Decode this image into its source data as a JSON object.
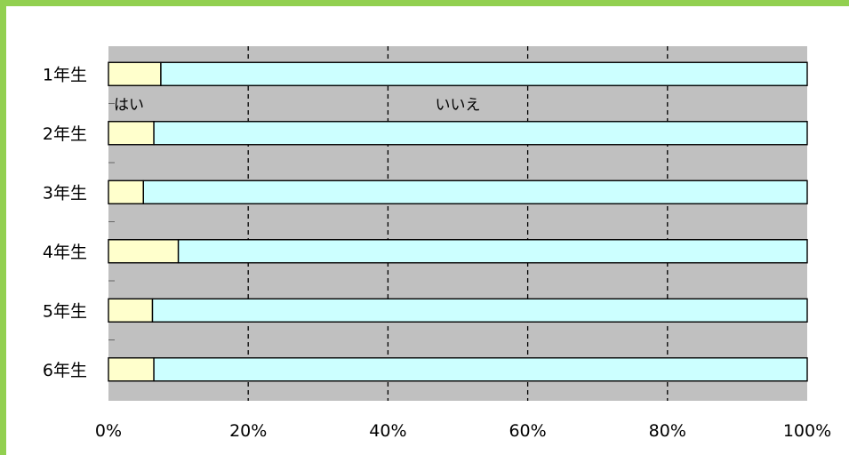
{
  "colors": {
    "border": "#92d050",
    "plot_bg": "#c0c0c0",
    "hai": "#ffffcc",
    "iie": "#ccffff",
    "bar_stroke": "#000000"
  },
  "chart_data": {
    "type": "bar",
    "orientation": "horizontal",
    "stacked": true,
    "percent": true,
    "categories": [
      "1年生",
      "2年生",
      "3年生",
      "4年生",
      "5年生",
      "6年生"
    ],
    "series": [
      {
        "name": "はい",
        "values": [
          7.5,
          6.5,
          5.0,
          10.0,
          6.3,
          6.5
        ]
      },
      {
        "name": "いいえ",
        "values": [
          92.5,
          93.5,
          95.0,
          90.0,
          93.7,
          93.5
        ]
      }
    ],
    "xlim": [
      0,
      100
    ],
    "xticks": [
      "0%",
      "20%",
      "40%",
      "60%",
      "80%",
      "100%"
    ],
    "grid": "vertical dashed",
    "legend": "inline labels",
    "title": "",
    "xlabel": "",
    "ylabel": ""
  }
}
